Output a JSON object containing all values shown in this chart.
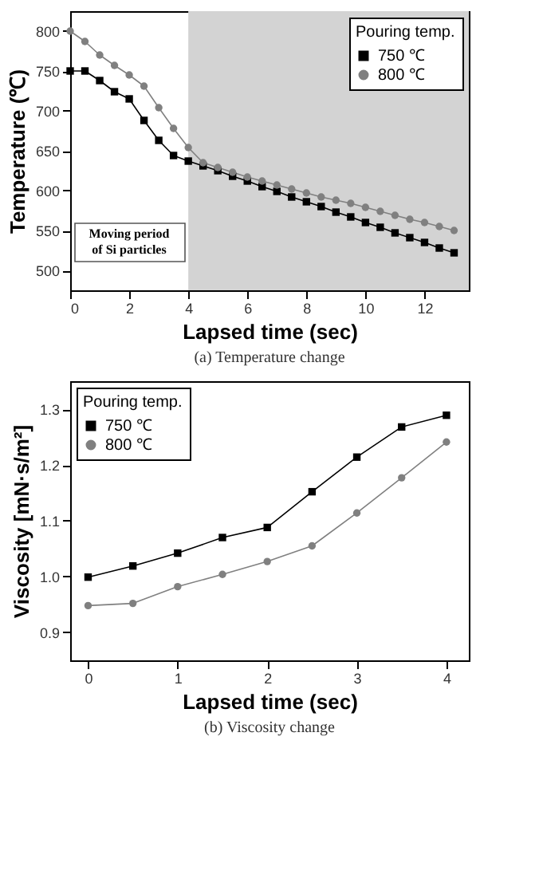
{
  "chart_data": [
    {
      "type": "line",
      "title": "(a) Temperature change",
      "xlabel": "Lapsed time (sec)",
      "ylabel": "Temperature (℃)",
      "legend_title": "Pouring temp.",
      "legend": "top right",
      "grid": false,
      "x": [
        0,
        0.5,
        1,
        1.5,
        2,
        2.5,
        3,
        3.5,
        4,
        4.5,
        5,
        5.5,
        6,
        6.5,
        7,
        7.5,
        8,
        8.5,
        9,
        9.5,
        10,
        10.5,
        11,
        11.5,
        12,
        12.5,
        13
      ],
      "series": [
        {
          "name": "750 ℃",
          "color": "#000000",
          "marker": "square",
          "values": [
            750,
            750,
            738,
            724,
            715,
            688,
            663,
            644,
            637,
            631,
            625,
            618,
            612,
            605,
            599,
            592,
            586,
            580,
            573,
            567,
            560,
            554,
            547,
            541,
            535,
            528,
            522
          ]
        },
        {
          "name": "800 ℃",
          "color": "#808080",
          "marker": "circle",
          "values": [
            800,
            787,
            770,
            757,
            745,
            731,
            704,
            678,
            654,
            635,
            629,
            623,
            617,
            612,
            607,
            602,
            597,
            592,
            588,
            584,
            579,
            574,
            569,
            564,
            560,
            555,
            550
          ]
        }
      ],
      "xlim": [
        0,
        13.5
      ],
      "xticks": [
        0,
        2,
        4,
        6,
        8,
        10,
        12
      ],
      "ylim": [
        475,
        825
      ],
      "yticks": [
        500,
        550,
        600,
        650,
        700,
        750,
        800
      ],
      "bands": [
        {
          "axis": "x",
          "from": 4,
          "to": 13.5,
          "color": "#d3d3d3"
        }
      ],
      "annotations": [
        "Moving period of Si particles"
      ]
    },
    {
      "type": "line",
      "title": "(b) Viscosity change",
      "xlabel": "Lapsed time (sec)",
      "ylabel": "Viscosity [mN·s/m²]",
      "legend_title": "Pouring temp.",
      "legend": "top left",
      "grid": false,
      "x": [
        0,
        0.5,
        1,
        1.5,
        2,
        2.5,
        3,
        3.5,
        4
      ],
      "series": [
        {
          "name": "750 ℃",
          "color": "#000000",
          "marker": "square",
          "values": [
            0.999,
            1.019,
            1.042,
            1.07,
            1.088,
            1.152,
            1.214,
            1.268,
            1.289
          ]
        },
        {
          "name": "800 ℃",
          "color": "#808080",
          "marker": "circle",
          "values": [
            0.948,
            0.952,
            0.982,
            1.004,
            1.027,
            1.055,
            1.114,
            1.177,
            1.241
          ]
        }
      ],
      "xlim": [
        -0.2,
        4.25
      ],
      "xticks": [
        0,
        1,
        2,
        3,
        4
      ],
      "ylim": [
        0.85,
        1.35
      ],
      "yticks": [
        0.9,
        {
          "value": 1,
          "label": "1.0"
        },
        1.1,
        1.2,
        1.3
      ]
    }
  ]
}
